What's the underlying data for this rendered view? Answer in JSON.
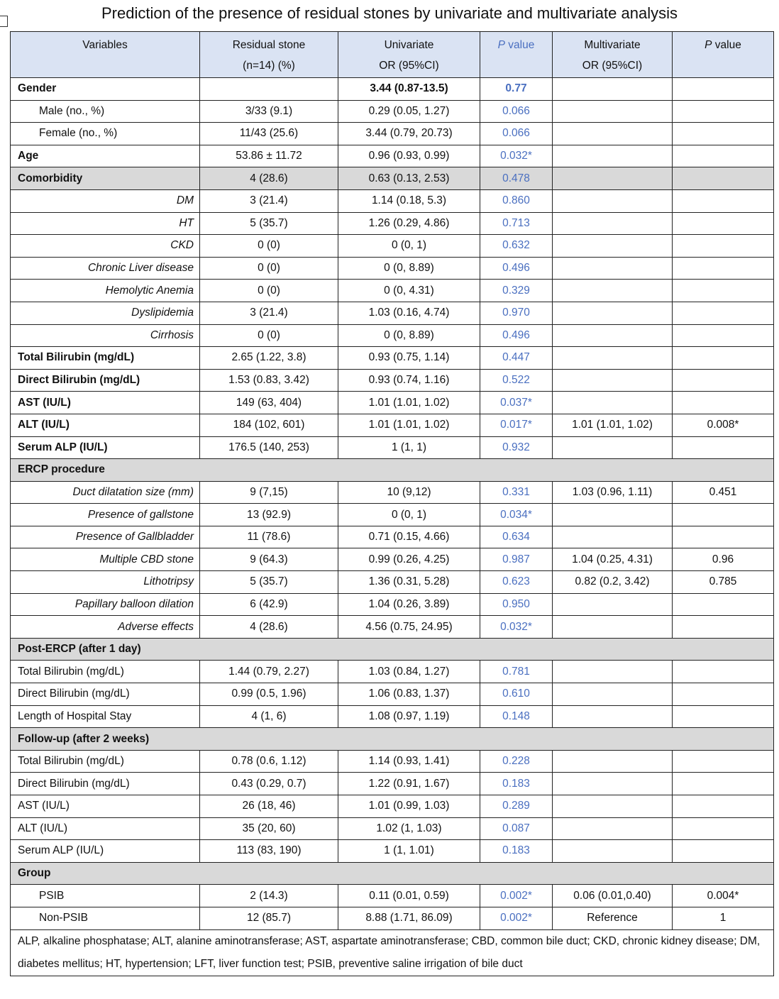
{
  "title": "Prediction of the presence of residual stones by univariate and multivariate analysis",
  "table": {
    "header": [
      [
        "Variables"
      ],
      [
        "Residual stone",
        "(n=14) (%)"
      ],
      [
        "Univariate",
        "OR (95%CI)"
      ],
      [
        "P value"
      ],
      [
        "Multivariate",
        "OR (95%CI)"
      ],
      [
        "P value"
      ]
    ],
    "rows": [
      [
        "Gender",
        null,
        "3.44 (0.87-13.5)",
        "0.77"
      ],
      [
        "Male (no., %)",
        "3/33 (9.1)",
        "0.29 (0.05, 1.27)",
        "0.066"
      ],
      [
        "Female (no., %)",
        "11/43 (25.6)",
        "3.44 (0.79, 20.73)",
        "0.066"
      ],
      [
        "Age",
        "53.86 ± 11.72",
        "0.96 (0.93, 0.99)",
        "0.032*"
      ],
      [
        "Comorbidity",
        "4 (28.6)",
        "0.63 (0.13, 2.53)",
        "0.478"
      ],
      [
        "DM",
        "3 (21.4)",
        "1.14 (0.18, 5.3)",
        "0.860"
      ],
      [
        "HT",
        "5 (35.7)",
        "1.26 (0.29, 4.86)",
        "0.713"
      ],
      [
        "CKD",
        "0 (0)",
        "0 (0, 1)",
        "0.632"
      ],
      [
        "Chronic Liver disease",
        "0 (0)",
        "0 (0, 8.89)",
        "0.496"
      ],
      [
        "Hemolytic Anemia",
        "0 (0)",
        "0 (0, 4.31)",
        "0.329"
      ],
      [
        "Dyslipidemia",
        "3 (21.4)",
        "1.03 (0.16, 4.74)",
        "0.970"
      ],
      [
        "Cirrhosis",
        "0 (0)",
        "0 (0, 8.89)",
        "0.496"
      ],
      [
        "Total Bilirubin (mg/dL)",
        "2.65 (1.22, 3.8)",
        "0.93 (0.75, 1.14)",
        "0.447"
      ],
      [
        "Direct Bilirubin (mg/dL)",
        "1.53 (0.83, 3.42)",
        "0.93 (0.74, 1.16)",
        "0.522"
      ],
      [
        "AST (IU/L)",
        "149 (63, 404)",
        "1.01 (1.01, 1.02)",
        "0.037*"
      ],
      [
        "ALT (IU/L)",
        "184 (102, 601)",
        "1.01 (1.01, 1.02)",
        "0.017*",
        "1.01 (1.01, 1.02)",
        "0.008*"
      ],
      [
        "Serum ALP (IU/L)",
        "176.5 (140, 253)",
        "1 (1, 1)",
        "0.932"
      ],
      [
        "ERCP procedure"
      ],
      [
        "Duct dilatation size (mm)",
        "9 (7,15)",
        "10 (9,12)",
        "0.331",
        "1.03 (0.96, 1.11)",
        "0.451"
      ],
      [
        "Presence of gallstone",
        "13 (92.9)",
        "0 (0, 1)",
        "0.034*"
      ],
      [
        "Presence of Gallbladder",
        "11 (78.6)",
        "0.71 (0.15, 4.66)",
        "0.634"
      ],
      [
        "Multiple CBD stone",
        "9 (64.3)",
        "0.99 (0.26, 4.25)",
        "0.987",
        "1.04 (0.25, 4.31)",
        "0.96"
      ],
      [
        "Lithotripsy",
        "5 (35.7)",
        "1.36 (0.31, 5.28)",
        "0.623",
        "0.82 (0.2, 3.42)",
        "0.785"
      ],
      [
        "Papillary balloon dilation",
        "6 (42.9)",
        "1.04 (0.26, 3.89)",
        "0.950"
      ],
      [
        "Adverse effects",
        "4 (28.6)",
        "4.56 (0.75, 24.95)",
        "0.032*"
      ],
      [
        "Post-ERCP (after 1 day)"
      ],
      [
        "Total Bilirubin (mg/dL)",
        "1.44 (0.79, 2.27)",
        "1.03 (0.84, 1.27)",
        "0.781"
      ],
      [
        "Direct Bilirubin (mg/dL)",
        "0.99 (0.5, 1.96)",
        "1.06 (0.83, 1.37)",
        "0.610"
      ],
      [
        "Length of Hospital Stay",
        "4 (1, 6)",
        "1.08 (0.97, 1.19)",
        "0.148"
      ],
      [
        "Follow-up (after 2 weeks)"
      ],
      [
        "Total Bilirubin (mg/dL)",
        "0.78 (0.6, 1.12)",
        "1.14 (0.93, 1.41)",
        "0.228"
      ],
      [
        "Direct Bilirubin (mg/dL)",
        "0.43 (0.29, 0.7)",
        "1.22 (0.91, 1.67)",
        "0.183"
      ],
      [
        "AST (IU/L)",
        "26 (18, 46)",
        "1.01 (0.99, 1.03)",
        "0.289"
      ],
      [
        "ALT (IU/L)",
        "35 (20, 60)",
        "1.02 (1, 1.03)",
        "0.087"
      ],
      [
        "Serum ALP (IU/L)",
        "113 (83, 190)",
        "1 (1, 1.01)",
        "0.183"
      ],
      [
        "Group"
      ],
      [
        "PSIB",
        "2 (14.3)",
        "0.11 (0.01, 0.59)",
        "0.002*",
        "0.06 (0.01,0.40)",
        "0.004*"
      ],
      [
        "Non-PSIB",
        "12 (85.7)",
        "8.88 (1.71, 86.09)",
        "0.002*",
        "Reference",
        "1"
      ]
    ],
    "footnote": "ALP, alkaline phosphatase; ALT, alanine aminotransferase; AST, aspartate aminotransferase; CBD, common bile duct; CKD, chronic kidney disease; DM, diabetes mellitus; HT, hypertension; LFT, liver function test; PSIB, preventive saline irrigation of bile duct"
  }
}
